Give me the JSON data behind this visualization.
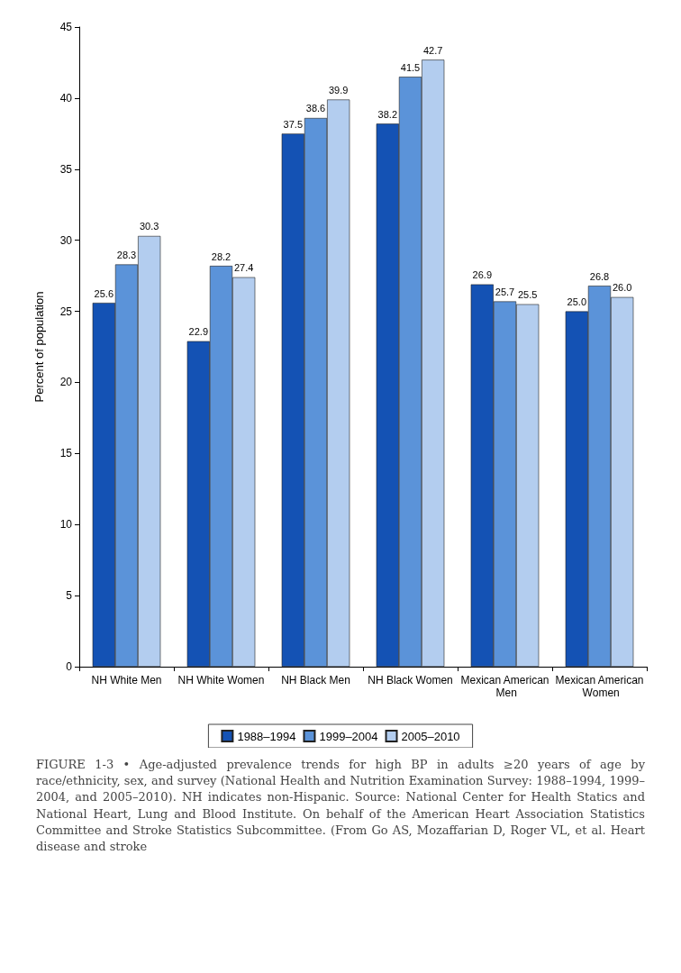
{
  "chart_data": {
    "type": "bar",
    "ylabel": "Percent of population",
    "categories": [
      "NH White Men",
      "NH White Women",
      "NH Black Men",
      "NH Black Women",
      "Mexican American Men",
      "Mexican American Women"
    ],
    "series": [
      {
        "name": "1988–1994",
        "color": "#1452b4",
        "values": [
          25.6,
          22.9,
          37.5,
          38.2,
          26.9,
          25.0
        ],
        "value_labels": [
          "25.6",
          "22.9",
          "37.5",
          "38.2",
          "26.9",
          "25.0"
        ]
      },
      {
        "name": "1999–2004",
        "color": "#5b93d9",
        "values": [
          28.3,
          28.2,
          38.6,
          41.5,
          25.7,
          26.8
        ],
        "value_labels": [
          "28.3",
          "28.2",
          "38.6",
          "41.5",
          "25.7",
          "26.8"
        ]
      },
      {
        "name": "2005–2010",
        "color": "#b3cdef",
        "values": [
          30.3,
          27.4,
          39.9,
          42.7,
          25.5,
          26.0
        ],
        "value_labels": [
          "30.3",
          "27.4",
          "39.9",
          "42.7",
          "25.5",
          "26.0"
        ]
      }
    ],
    "ylim": [
      0,
      45
    ],
    "yticks": [
      0,
      5,
      10,
      15,
      20,
      25,
      30,
      35,
      40,
      45
    ],
    "grid": false,
    "legend": "bottom",
    "annotations": [
      "FIGURE 1-3 • Age-adjusted prevalence trends for high BP in adults ≥20 years of age by race/ethnicity, sex, and survey (National Health and Nutrition Examination Survey: 1988–1994, 1999–2004, and 2005–2010). NH indicates non-Hispanic. Source: National Center for Health Statics and National Heart, Lung and Blood Institute. On behalf of the American Heart Association Statistics Committee and Stroke Statistics Subcommittee. (From Go AS, Mozaffarian D, Roger VL, et al. Heart disease and stroke"
    ]
  }
}
